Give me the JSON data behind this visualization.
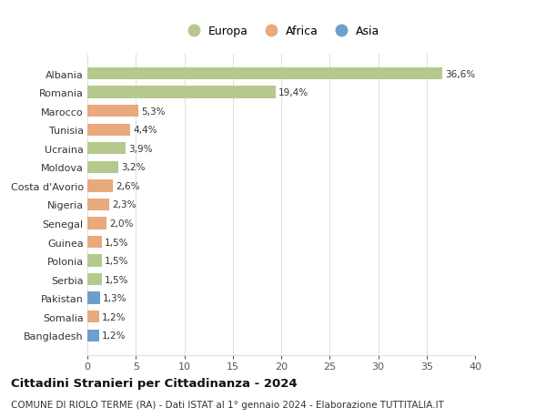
{
  "categories": [
    "Albania",
    "Romania",
    "Marocco",
    "Tunisia",
    "Ucraina",
    "Moldova",
    "Costa d'Avorio",
    "Nigeria",
    "Senegal",
    "Guinea",
    "Polonia",
    "Serbia",
    "Pakistan",
    "Somalia",
    "Bangladesh"
  ],
  "values": [
    36.6,
    19.4,
    5.3,
    4.4,
    3.9,
    3.2,
    2.6,
    2.3,
    2.0,
    1.5,
    1.5,
    1.5,
    1.3,
    1.2,
    1.2
  ],
  "labels": [
    "36,6%",
    "19,4%",
    "5,3%",
    "4,4%",
    "3,9%",
    "3,2%",
    "2,6%",
    "2,3%",
    "2,0%",
    "1,5%",
    "1,5%",
    "1,5%",
    "1,3%",
    "1,2%",
    "1,2%"
  ],
  "continents": [
    "Europa",
    "Europa",
    "Africa",
    "Africa",
    "Europa",
    "Europa",
    "Africa",
    "Africa",
    "Africa",
    "Africa",
    "Europa",
    "Europa",
    "Asia",
    "Africa",
    "Asia"
  ],
  "colors": {
    "Europa": "#b5c98e",
    "Africa": "#e8a97c",
    "Asia": "#6e9fcb"
  },
  "xlim": [
    0,
    40
  ],
  "xticks": [
    0,
    5,
    10,
    15,
    20,
    25,
    30,
    35,
    40
  ],
  "title": "Cittadini Stranieri per Cittadinanza - 2024",
  "subtitle": "COMUNE DI RIOLO TERME (RA) - Dati ISTAT al 1° gennaio 2024 - Elaborazione TUTTITALIA.IT",
  "background_color": "#ffffff",
  "grid_color": "#e0e0e0"
}
